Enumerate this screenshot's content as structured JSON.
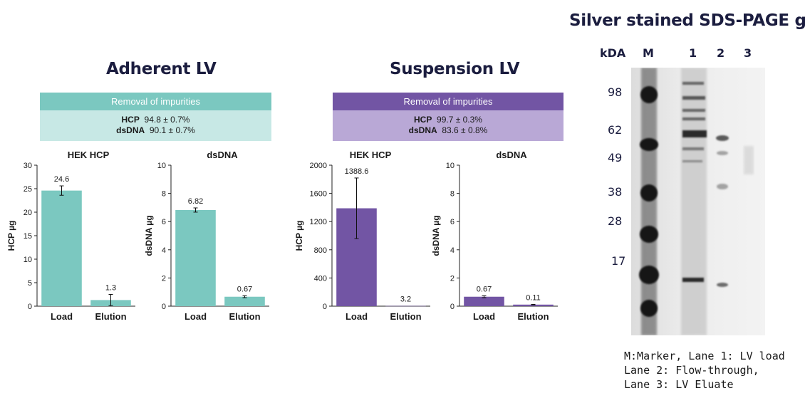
{
  "colors": {
    "teal": "#7bc8c0",
    "teal_light": "#c7e8e5",
    "purple": "#7255a4",
    "purple_light": "#b9a8d6",
    "title": "#1b1d3f"
  },
  "adherent": {
    "title": "Adherent LV",
    "box_header": "Removal of impurities",
    "hcp_label": "HCP",
    "hcp_value": "94.8 ± 0.7%",
    "dsdna_label": "dsDNA",
    "dsdna_value": "90.1 ± 0.7%"
  },
  "suspension": {
    "title": "Suspension LV",
    "box_header": "Removal of impurities",
    "hcp_label": "HCP",
    "hcp_value": "99.7 ± 0.3%",
    "dsdna_label": "dsDNA",
    "dsdna_value": "83.6 ± 0.8%"
  },
  "gel": {
    "title": "Silver stained SDS-PAGE gel",
    "kda_label": "kDA",
    "lanes": [
      "M",
      "1",
      "2",
      "3"
    ],
    "markers": [
      "98",
      "62",
      "49",
      "38",
      "28",
      "17"
    ],
    "caption_lines": [
      "M:Marker, Lane 1: LV load",
      "Lane 2: Flow-through,",
      "Lane 3: LV Eluate"
    ]
  },
  "chart_data": [
    {
      "type": "bar",
      "title": "HEK HCP",
      "ylabel": "HCP µg",
      "categories": [
        "Load",
        "Elution"
      ],
      "values": [
        24.6,
        1.3
      ],
      "errors": [
        1.0,
        1.2
      ],
      "labels": [
        "24.6",
        "1.3"
      ],
      "ylim": [
        0,
        30
      ],
      "ticks": [
        "0",
        "5",
        "10",
        "15",
        "20",
        "25",
        "30"
      ],
      "color": "#7bc8c0"
    },
    {
      "type": "bar",
      "title": "dsDNA",
      "ylabel": "dsDNA µg",
      "categories": [
        "Load",
        "Elution"
      ],
      "values": [
        6.82,
        0.67
      ],
      "errors": [
        0.15,
        0.07
      ],
      "labels": [
        "6.82",
        "0.67"
      ],
      "ylim": [
        0,
        10
      ],
      "ticks": [
        "0",
        "2",
        "4",
        "6",
        "8",
        "10"
      ],
      "color": "#7bc8c0"
    },
    {
      "type": "bar",
      "title": "HEK HCP",
      "ylabel": "HCP µg",
      "categories": [
        "Load",
        "Elution"
      ],
      "values": [
        1388.6,
        3.2
      ],
      "errors": [
        430,
        0
      ],
      "labels": [
        "1388.6",
        "3.2"
      ],
      "ylim": [
        0,
        2000
      ],
      "ticks": [
        "0",
        "400",
        "800",
        "1200",
        "1600",
        "2000"
      ],
      "color": "#7255a4"
    },
    {
      "type": "bar",
      "title": "dsDNA",
      "ylabel": "dsDNA µg",
      "categories": [
        "Load",
        "Elution"
      ],
      "values": [
        0.67,
        0.11
      ],
      "errors": [
        0.07,
        0.02
      ],
      "labels": [
        "0.67",
        "0.11"
      ],
      "ylim": [
        0,
        10
      ],
      "ticks": [
        "0",
        "2",
        "4",
        "6",
        "8",
        "10"
      ],
      "color": "#7255a4"
    }
  ]
}
